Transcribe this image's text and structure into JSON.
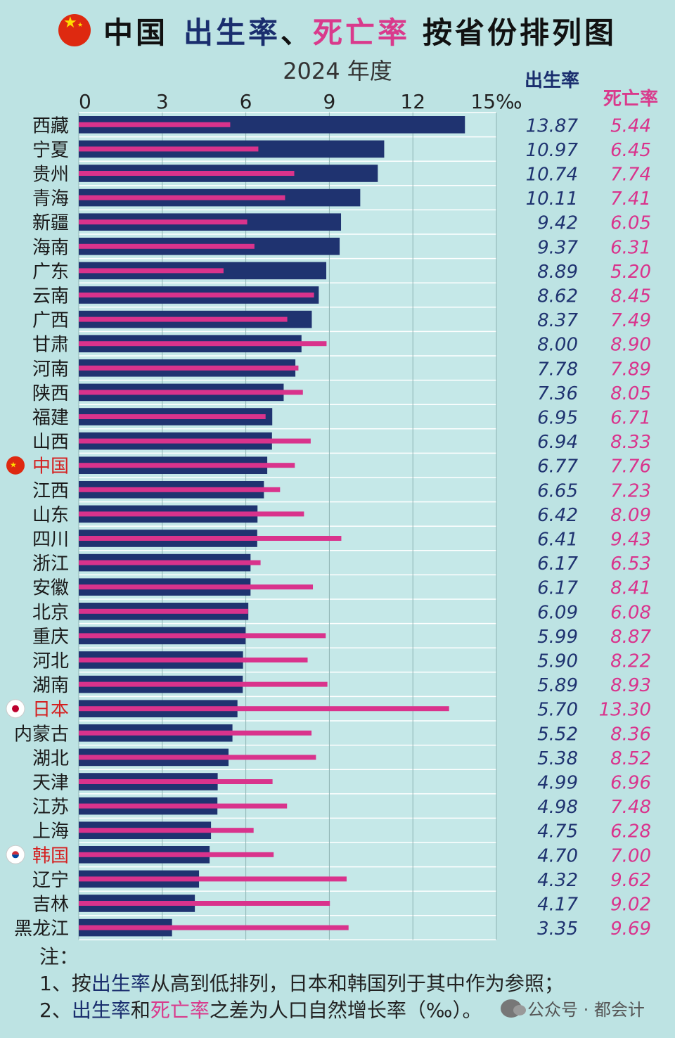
{
  "title": {
    "part1": "中国",
    "part2": "出生率",
    "part3": "、",
    "part4": "死亡率",
    "part5": "按省份排列图"
  },
  "subtitle": "2024 年度",
  "columns": {
    "birth": "出生率",
    "death": "死亡率"
  },
  "colors": {
    "birth": "#1f3370",
    "death": "#d9338c",
    "highlight_label": "#d42020",
    "background": "#bde3e3"
  },
  "chart_data": {
    "type": "bar",
    "xlim": [
      0,
      15
    ],
    "ticks": [
      "0",
      "3",
      "6",
      "9",
      "12",
      "15‰"
    ],
    "tick_values": [
      0,
      3,
      6,
      9,
      12,
      15
    ],
    "grid": true,
    "categories": [
      "西藏",
      "宁夏",
      "贵州",
      "青海",
      "新疆",
      "海南",
      "广东",
      "云南",
      "广西",
      "甘肃",
      "河南",
      "陕西",
      "福建",
      "山西",
      "中国",
      "江西",
      "山东",
      "四川",
      "浙江",
      "安徽",
      "北京",
      "重庆",
      "河北",
      "湖南",
      "日本",
      "内蒙古",
      "湖北",
      "天津",
      "江苏",
      "上海",
      "韩国",
      "辽宁",
      "吉林",
      "黑龙江"
    ],
    "highlighted": [
      "中国",
      "日本",
      "韩国"
    ],
    "flags": {
      "中国": "china-flag",
      "日本": "japan-flag",
      "韩国": "korea-flag"
    },
    "series": [
      {
        "name": "出生率",
        "values": [
          13.87,
          10.97,
          10.74,
          10.11,
          9.42,
          9.37,
          8.89,
          8.62,
          8.37,
          8.0,
          7.78,
          7.36,
          6.95,
          6.94,
          6.77,
          6.65,
          6.42,
          6.41,
          6.17,
          6.17,
          6.09,
          5.99,
          5.9,
          5.89,
          5.7,
          5.52,
          5.38,
          4.99,
          4.98,
          4.75,
          4.7,
          4.32,
          4.17,
          3.35
        ],
        "labels": [
          "13.87",
          "10.97",
          "10.74",
          "10.11",
          "9.42",
          "9.37",
          "8.89",
          "8.62",
          "8.37",
          "8.00",
          "7.78",
          "7.36",
          "6.95",
          "6.94",
          "6.77",
          "6.65",
          "6.42",
          "6.41",
          "6.17",
          "6.17",
          "6.09",
          "5.99",
          "5.90",
          "5.89",
          "5.70",
          "5.52",
          "5.38",
          "4.99",
          "4.98",
          "4.75",
          "4.70",
          "4.32",
          "4.17",
          "3.35"
        ]
      },
      {
        "name": "死亡率",
        "values": [
          5.44,
          6.45,
          7.74,
          7.41,
          6.05,
          6.31,
          5.2,
          8.45,
          7.49,
          8.9,
          7.89,
          8.05,
          6.71,
          8.33,
          7.76,
          7.23,
          8.09,
          9.43,
          6.53,
          8.41,
          6.08,
          8.87,
          8.22,
          8.93,
          13.3,
          8.36,
          8.52,
          6.96,
          7.48,
          6.28,
          7.0,
          9.62,
          9.02,
          9.69
        ],
        "labels": [
          "5.44",
          "6.45",
          "7.74",
          "7.41",
          "6.05",
          "6.31",
          "5.20",
          "8.45",
          "7.49",
          "8.90",
          "7.89",
          "8.05",
          "6.71",
          "8.33",
          "7.76",
          "7.23",
          "8.09",
          "9.43",
          "6.53",
          "8.41",
          "6.08",
          "8.87",
          "8.22",
          "8.93",
          "13.30",
          "8.36",
          "8.52",
          "6.96",
          "7.48",
          "6.28",
          "7.00",
          "9.62",
          "9.02",
          "9.69"
        ]
      }
    ]
  },
  "notes": {
    "head": "注：",
    "line1_a": "1、按",
    "line1_b": "出生率",
    "line1_c": "从高到低排列，日本和韩国列于其中作为参照；",
    "line2_a": "2、",
    "line2_b": "出生率",
    "line2_c": "和",
    "line2_d": "死亡率",
    "line2_e": "之差为人口自然增长率（‰）。"
  },
  "watermark": "公众号 · 都会计"
}
